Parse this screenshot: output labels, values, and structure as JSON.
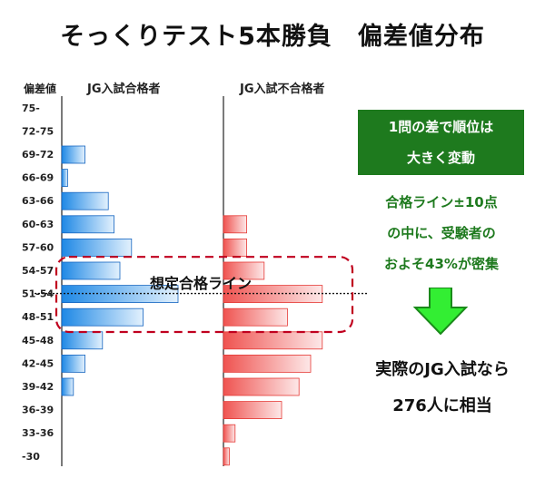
{
  "title": "そっくりテスト5本勝負　偏差値分布",
  "headers": {
    "axis": "偏差値",
    "left": "JG入試合格者",
    "right": "JG入試不合格者"
  },
  "pass_line_label": "想定合格ライン",
  "callout_box": [
    "1問の差で順位は",
    "大きく変動"
  ],
  "callout_text": [
    "合格ライン±10点",
    "の中に、受験者の",
    "およそ43%が密集"
  ],
  "conclusion": [
    "実際のJG入試なら",
    "276人に相当"
  ],
  "colors": {
    "pass": "#1e88e5",
    "fail": "#ef5350",
    "box": "#1e7a1e",
    "arrow": "#33ee33",
    "highlight": "#c0001e"
  },
  "chart_data": {
    "type": "bar",
    "orientation": "horizontal",
    "categories": [
      "75-",
      "72-75",
      "69-72",
      "66-69",
      "63-66",
      "60-63",
      "57-60",
      "54-57",
      "51-54",
      "48-51",
      "45-48",
      "42-45",
      "39-42",
      "36-39",
      "33-36",
      "-30"
    ],
    "series": [
      {
        "name": "JG入試合格者",
        "side": "left",
        "values": [
          0,
          0,
          4,
          1,
          8,
          9,
          12,
          10,
          20,
          14,
          7,
          4,
          2,
          0,
          0,
          0
        ]
      },
      {
        "name": "JG入試不合格者",
        "side": "right",
        "values": [
          0,
          0,
          0,
          0,
          0,
          4,
          4,
          7,
          17,
          11,
          17,
          15,
          13,
          10,
          2,
          1
        ]
      }
    ],
    "xlabel": "",
    "ylabel": "偏差値",
    "xlim": [
      0,
      20
    ]
  }
}
